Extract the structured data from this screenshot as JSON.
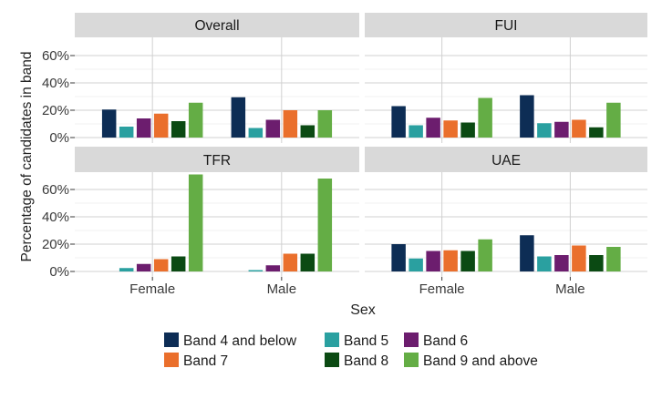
{
  "chart_data": {
    "type": "bar",
    "xlabel": "Sex",
    "ylabel": "Percentage of candidates in band",
    "categories": [
      "Female",
      "Male"
    ],
    "series_names": [
      "Band 4 and below",
      "Band 5",
      "Band 6",
      "Band 7",
      "Band 8",
      "Band 9 and above"
    ],
    "colors": [
      "#0d2d55",
      "#2aa0a0",
      "#6c1d6e",
      "#ea6f2c",
      "#0b4a13",
      "#64ad45"
    ],
    "panels": [
      {
        "title": "Overall",
        "ylim": [
          0,
          65
        ],
        "yticks": [
          0,
          20,
          40,
          60
        ],
        "values": {
          "Female": [
            20.5,
            8,
            14,
            17.5,
            12,
            25.5
          ],
          "Male": [
            29.5,
            7,
            13,
            20,
            9,
            20
          ]
        }
      },
      {
        "title": "FUI",
        "ylim": [
          0,
          65
        ],
        "yticks": [
          0,
          20,
          40,
          60
        ],
        "values": {
          "Female": [
            23,
            9,
            14.5,
            12.5,
            11,
            29
          ],
          "Male": [
            31,
            10.5,
            11.5,
            13,
            7.5,
            25.5
          ]
        }
      },
      {
        "title": "TFR",
        "ylim": [
          0,
          71
        ],
        "yticks": [
          0,
          20,
          40,
          60
        ],
        "values": {
          "Female": [
            0,
            2.5,
            5.5,
            9,
            11,
            71
          ],
          "Male": [
            0,
            1,
            4.5,
            13,
            13,
            68
          ]
        }
      },
      {
        "title": "UAE",
        "ylim": [
          0,
          71
        ],
        "yticks": [
          0,
          20,
          40,
          60
        ],
        "values": {
          "Female": [
            20,
            9.5,
            15,
            15.5,
            15,
            23.5
          ],
          "Male": [
            26.5,
            11,
            12,
            19,
            12,
            18
          ]
        }
      }
    ],
    "legend": {
      "placement": "bottom",
      "rows": [
        [
          "Band 4 and below",
          "Band 5",
          "Band 6"
        ],
        [
          "Band 7",
          "Band 8",
          "Band 9 and above"
        ]
      ]
    },
    "grid": true
  }
}
